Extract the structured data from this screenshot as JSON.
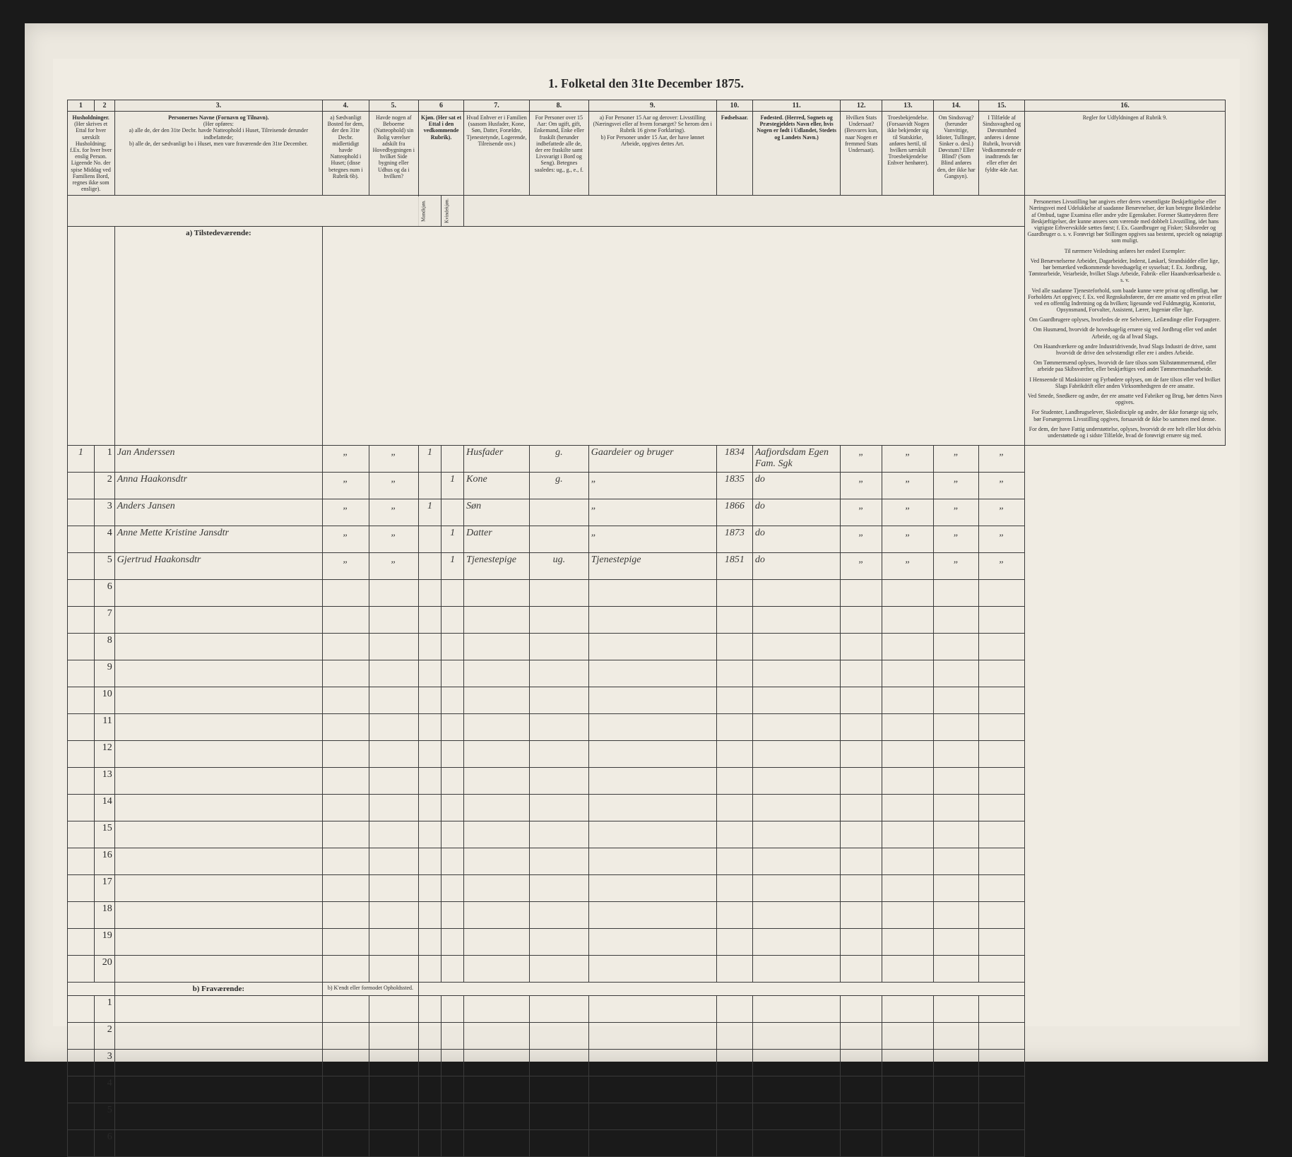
{
  "title": "1. Folketal den 31te December 1875.",
  "colors": {
    "page_bg": "#ece8df",
    "paper_bg": "#f0ece3",
    "rule": "#3a3a3a",
    "ink": "#2a2a2a",
    "hand_ink": "#3a3a38",
    "frame": "#1a1a1a"
  },
  "column_numbers": [
    "1",
    "2",
    "3.",
    "4.",
    "5.",
    "6",
    "7.",
    "8.",
    "9.",
    "10.",
    "11.",
    "12.",
    "13.",
    "14.",
    "15.",
    "16."
  ],
  "column_headers": {
    "c1": "Husholdninger.",
    "c1_sub": "(Her skrives et Ettal for hver særskilt Husholdning; f.Ex. for hver hver enslig Person.  Ligeende No. der spise Middag ved Familiens Bord, regnes ikke som enslige).",
    "c3": "Personernes Navne (Fornavn og Tilnavn).",
    "c3_sub_a": "a) alle de, der den 31te Decbr. havde Natteophold i Huset, Tilreisende derunder indbefattede;",
    "c3_sub_b": "b) alle de, der sædvanligt bo i Huset, men vare fraværende den 31te December.",
    "c3_note": "(Her opføres:",
    "c4": "a) Sædvanligt Bosted for dem, der den 31te Decbr. midlertidigt havde Natteophold i Huset; (disse betegnes num i Rubrik 6b).",
    "c5": "Havde nogen af Beboerne (Natteophold) sin Bolig værelser adskilt fra Hovedbygningen i hvilket Side bygning eller Udhus og da i hvilken?",
    "c6": "Kjøn. (Her sat et Ettal i den vedkommende Rubrik).",
    "c6a": "Mandkjøn.",
    "c6b": "Kvindekjøn.",
    "c7": "Hvad Enhver er i Familien (saasom Husfader, Kone, Søn, Datter, Forældre, Tjenestetynde, Logerende, Tilreisende osv.)",
    "c8": "For Personer over 15 Aar: Om ugift, gift, Enkemand, Enke eller fraskilt (herunder indbefattede alle de, der ere fraskilte samt Livsvarigt i Bord og Seng). Betegnes saaledes: ug., g., e., f.",
    "c9": "a) For Personer 15 Aar og derover: Livsstilling (Næringsvei eller af hvem forsørget? Se herom den i Rubrik 16 givne Forklaring).\nb) For Personer under 15 Aar, der have lønnet Arbeide, opgives dettes Art.",
    "c10": "Fødselsaar.",
    "c11": "Fødested. (Herred, Sognets og Præstegjeldets Navn eller, hvis Nogen er født i Udlandet, Stedets og Landets Navn.)",
    "c12": "Hvilken Stats Undersaat? (Besvares kun, naar Nogen er fremmed Stats Undersaat).",
    "c13": "Troesbekjendelse. (Forsaavidt Nogen ikke bekjender sig til Statskirke, anføres hertil, til hvilken særskilt Troesbekjendelse Enhver henhører).",
    "c14": "Om Sindssvag? (herunder Vanvittige, Idioter, Tullinger, Sinker o. desl.) Døvstum? Eller Blind? (Som Blind anføres den, der ikke har Gangsyn).",
    "c15": "I Tilfælde af Sindssvaghed og Døvstumhed anføres i denne Rubrik, hvorvidt Vedkommende er inadtrænds før eller efter det fyldte 4de Aar.",
    "c16": "Regler for Udfyldningen af Rubrik 9."
  },
  "sections": {
    "present": "a) Tilstedeværende:",
    "absent": "b) Fraværende:",
    "absent_note": "b) K'endt eller formodet Opholdssted."
  },
  "rows_present_count": 20,
  "rows_absent_count": 6,
  "entries": [
    {
      "hh": "1",
      "pn": "1",
      "name": "Jan Anderssen",
      "c4": "„",
      "c5": "„",
      "sex_m": "1",
      "sex_f": "",
      "relation": "Husfader",
      "civil": "g.",
      "occupation": "Gaardeier og bruger",
      "birth_year": "1834",
      "birth_place": "Aafjordsdam Egen Fam. Sgk",
      "c12": "„",
      "c13": "„",
      "c14": "„",
      "c15": "„"
    },
    {
      "hh": "",
      "pn": "2",
      "name": "Anna Haakonsdtr",
      "c4": "„",
      "c5": "„",
      "sex_m": "",
      "sex_f": "1",
      "relation": "Kone",
      "civil": "g.",
      "occupation": "„",
      "birth_year": "1835",
      "birth_place": "do",
      "c12": "„",
      "c13": "„",
      "c14": "„",
      "c15": "„"
    },
    {
      "hh": "",
      "pn": "3",
      "name": "Anders Jansen",
      "c4": "„",
      "c5": "„",
      "sex_m": "1",
      "sex_f": "",
      "relation": "Søn",
      "civil": "",
      "occupation": "„",
      "birth_year": "1866",
      "birth_place": "do",
      "c12": "„",
      "c13": "„",
      "c14": "„",
      "c15": "„"
    },
    {
      "hh": "",
      "pn": "4",
      "name": "Anne Mette Kristine Jansdtr",
      "c4": "„",
      "c5": "„",
      "sex_m": "",
      "sex_f": "1",
      "relation": "Datter",
      "civil": "",
      "occupation": "„",
      "birth_year": "1873",
      "birth_place": "do",
      "c12": "„",
      "c13": "„",
      "c14": "„",
      "c15": "„"
    },
    {
      "hh": "",
      "pn": "5",
      "name": "Gjertrud Haakonsdtr",
      "c4": "„",
      "c5": "„",
      "sex_m": "",
      "sex_f": "1",
      "relation": "Tjenestepige",
      "civil": "ug.",
      "occupation": "Tjenestepige",
      "birth_year": "1851",
      "birth_place": "do",
      "c12": "„",
      "c13": "„",
      "c14": "„",
      "c15": "„"
    }
  ],
  "instructions": {
    "p1": "Personernes Livsstilling bør angives efter deres væsentligste Beskjæftigelse eller Næringsvei med Udelukkelse af saadanne Benævnelser, der kun betegne Beklædelse af Ombud, tagne Examina eller andre ydre Egenskaber. Forener Skatteyderen flere Beskjæftigelser, der kunne ansees som værende med dobbelt Livsstilling, idet hans vigtigste Erhvervskilde sættes først; f. Ex. Gaardbruger og Fisker; Skibsreder og Gaardbruger o. s. v. Forøvrigt bør Stillingen opgives saa bestemt, specielt og nøiagtigt som muligt.",
    "p2": "Til nærmere Veiledning anføres her endeel Exempler:",
    "p3": "Ved Benævnelserne Arbeider, Dagarbeider, Inderst, Løskarl, Strandsidder eller lige, bør bemærked vedkommende hovedsagelig er sysselsat; f. Ex. Jordbrug, Tømtearbeide, Veiarbeide, hvilket Slags Arbeide, Fabrik- eller Haandværksarbeide o. s. v.",
    "p4": "Ved alle saadanne Tjenesteforhold, som baade kunne være privat og offentligt, bør Forholdets Art opgives; f. Ex. ved Regnskabsførere, der ere ansatte ved en privat eller ved en offentlig Indretning og da hvilken; ligesunde ved Fuldmægtig, Kontorist, Opsynsmand, Forvalter, Assistent, Lærer, Ingeniør eller lige.",
    "p5": "Om Gaardbrugere oplyses, hvorledes de ere Selveiere, Leilændinge eller Forpagtere.",
    "p6": "Om Husmænd, hvorvidt de hovedsagelig ernære sig ved Jordbrug eller ved andet Arbeide, og da af hvad Slags.",
    "p7": "Om Haandværkere og andre Industridrivende, hvad Slags Industri de drive, samt hvorvidt de drive den selvstændigt eller ere i andres Arbeide.",
    "p8": "Om Tømmermænd oplyses, hvorvidt de fare tilsos som Skibstømmermænd, eller arbeide paa Skibsværfter, eller beskjæftiges ved andet Tømmermandsarbeide.",
    "p9": "I Henseende til Maskinister og Fyrbødere oplyses, om de fare tilsos eller ved hvilket Slags Fabrikdrift eller anden Virksomhedsgren de ere ansatte.",
    "p10": "Ved Smede, Snedkere og andre, der ere ansatte ved Fabriker og Brug, bør dettes Navn opgives.",
    "p11": "For Studenter, Landbrugselever, Skoledisciple og andre, der ikke forsørge sig selv, bør Forsørgerens Livsstilling opgives, forsaavidt de ikke bo sammen med denne.",
    "p12": "For dem, der have Fattig understøttelse, oplyses, hvorvidt de ere helt eller blot delvis understøttede og i sidste Tilfælde, hvad de forøvrigt ernære sig med."
  }
}
